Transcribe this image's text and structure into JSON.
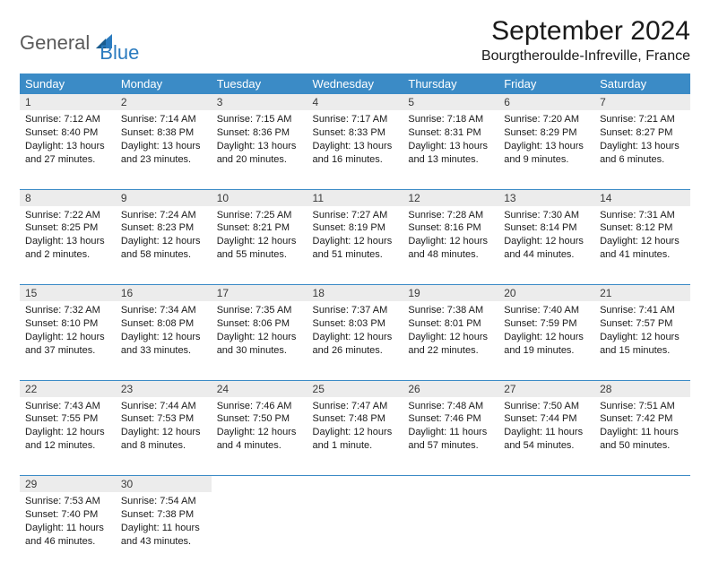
{
  "logo": {
    "part1": "General",
    "part2": "Blue"
  },
  "title": "September 2024",
  "location": "Bourgtheroulde-Infreville, France",
  "colors": {
    "header_bg": "#3b8bc6",
    "header_text": "#ffffff",
    "daynum_bg": "#ececec",
    "border": "#3b8bc6",
    "logo_gray": "#5a5a5a",
    "logo_blue": "#2b7bbf"
  },
  "weekdays": [
    "Sunday",
    "Monday",
    "Tuesday",
    "Wednesday",
    "Thursday",
    "Friday",
    "Saturday"
  ],
  "weeks": [
    [
      {
        "day": "1",
        "sunrise": "Sunrise: 7:12 AM",
        "sunset": "Sunset: 8:40 PM",
        "daylight": "Daylight: 13 hours and 27 minutes."
      },
      {
        "day": "2",
        "sunrise": "Sunrise: 7:14 AM",
        "sunset": "Sunset: 8:38 PM",
        "daylight": "Daylight: 13 hours and 23 minutes."
      },
      {
        "day": "3",
        "sunrise": "Sunrise: 7:15 AM",
        "sunset": "Sunset: 8:36 PM",
        "daylight": "Daylight: 13 hours and 20 minutes."
      },
      {
        "day": "4",
        "sunrise": "Sunrise: 7:17 AM",
        "sunset": "Sunset: 8:33 PM",
        "daylight": "Daylight: 13 hours and 16 minutes."
      },
      {
        "day": "5",
        "sunrise": "Sunrise: 7:18 AM",
        "sunset": "Sunset: 8:31 PM",
        "daylight": "Daylight: 13 hours and 13 minutes."
      },
      {
        "day": "6",
        "sunrise": "Sunrise: 7:20 AM",
        "sunset": "Sunset: 8:29 PM",
        "daylight": "Daylight: 13 hours and 9 minutes."
      },
      {
        "day": "7",
        "sunrise": "Sunrise: 7:21 AM",
        "sunset": "Sunset: 8:27 PM",
        "daylight": "Daylight: 13 hours and 6 minutes."
      }
    ],
    [
      {
        "day": "8",
        "sunrise": "Sunrise: 7:22 AM",
        "sunset": "Sunset: 8:25 PM",
        "daylight": "Daylight: 13 hours and 2 minutes."
      },
      {
        "day": "9",
        "sunrise": "Sunrise: 7:24 AM",
        "sunset": "Sunset: 8:23 PM",
        "daylight": "Daylight: 12 hours and 58 minutes."
      },
      {
        "day": "10",
        "sunrise": "Sunrise: 7:25 AM",
        "sunset": "Sunset: 8:21 PM",
        "daylight": "Daylight: 12 hours and 55 minutes."
      },
      {
        "day": "11",
        "sunrise": "Sunrise: 7:27 AM",
        "sunset": "Sunset: 8:19 PM",
        "daylight": "Daylight: 12 hours and 51 minutes."
      },
      {
        "day": "12",
        "sunrise": "Sunrise: 7:28 AM",
        "sunset": "Sunset: 8:16 PM",
        "daylight": "Daylight: 12 hours and 48 minutes."
      },
      {
        "day": "13",
        "sunrise": "Sunrise: 7:30 AM",
        "sunset": "Sunset: 8:14 PM",
        "daylight": "Daylight: 12 hours and 44 minutes."
      },
      {
        "day": "14",
        "sunrise": "Sunrise: 7:31 AM",
        "sunset": "Sunset: 8:12 PM",
        "daylight": "Daylight: 12 hours and 41 minutes."
      }
    ],
    [
      {
        "day": "15",
        "sunrise": "Sunrise: 7:32 AM",
        "sunset": "Sunset: 8:10 PM",
        "daylight": "Daylight: 12 hours and 37 minutes."
      },
      {
        "day": "16",
        "sunrise": "Sunrise: 7:34 AM",
        "sunset": "Sunset: 8:08 PM",
        "daylight": "Daylight: 12 hours and 33 minutes."
      },
      {
        "day": "17",
        "sunrise": "Sunrise: 7:35 AM",
        "sunset": "Sunset: 8:06 PM",
        "daylight": "Daylight: 12 hours and 30 minutes."
      },
      {
        "day": "18",
        "sunrise": "Sunrise: 7:37 AM",
        "sunset": "Sunset: 8:03 PM",
        "daylight": "Daylight: 12 hours and 26 minutes."
      },
      {
        "day": "19",
        "sunrise": "Sunrise: 7:38 AM",
        "sunset": "Sunset: 8:01 PM",
        "daylight": "Daylight: 12 hours and 22 minutes."
      },
      {
        "day": "20",
        "sunrise": "Sunrise: 7:40 AM",
        "sunset": "Sunset: 7:59 PM",
        "daylight": "Daylight: 12 hours and 19 minutes."
      },
      {
        "day": "21",
        "sunrise": "Sunrise: 7:41 AM",
        "sunset": "Sunset: 7:57 PM",
        "daylight": "Daylight: 12 hours and 15 minutes."
      }
    ],
    [
      {
        "day": "22",
        "sunrise": "Sunrise: 7:43 AM",
        "sunset": "Sunset: 7:55 PM",
        "daylight": "Daylight: 12 hours and 12 minutes."
      },
      {
        "day": "23",
        "sunrise": "Sunrise: 7:44 AM",
        "sunset": "Sunset: 7:53 PM",
        "daylight": "Daylight: 12 hours and 8 minutes."
      },
      {
        "day": "24",
        "sunrise": "Sunrise: 7:46 AM",
        "sunset": "Sunset: 7:50 PM",
        "daylight": "Daylight: 12 hours and 4 minutes."
      },
      {
        "day": "25",
        "sunrise": "Sunrise: 7:47 AM",
        "sunset": "Sunset: 7:48 PM",
        "daylight": "Daylight: 12 hours and 1 minute."
      },
      {
        "day": "26",
        "sunrise": "Sunrise: 7:48 AM",
        "sunset": "Sunset: 7:46 PM",
        "daylight": "Daylight: 11 hours and 57 minutes."
      },
      {
        "day": "27",
        "sunrise": "Sunrise: 7:50 AM",
        "sunset": "Sunset: 7:44 PM",
        "daylight": "Daylight: 11 hours and 54 minutes."
      },
      {
        "day": "28",
        "sunrise": "Sunrise: 7:51 AM",
        "sunset": "Sunset: 7:42 PM",
        "daylight": "Daylight: 11 hours and 50 minutes."
      }
    ],
    [
      {
        "day": "29",
        "sunrise": "Sunrise: 7:53 AM",
        "sunset": "Sunset: 7:40 PM",
        "daylight": "Daylight: 11 hours and 46 minutes."
      },
      {
        "day": "30",
        "sunrise": "Sunrise: 7:54 AM",
        "sunset": "Sunset: 7:38 PM",
        "daylight": "Daylight: 11 hours and 43 minutes."
      },
      {
        "empty": true
      },
      {
        "empty": true
      },
      {
        "empty": true
      },
      {
        "empty": true
      },
      {
        "empty": true
      }
    ]
  ]
}
